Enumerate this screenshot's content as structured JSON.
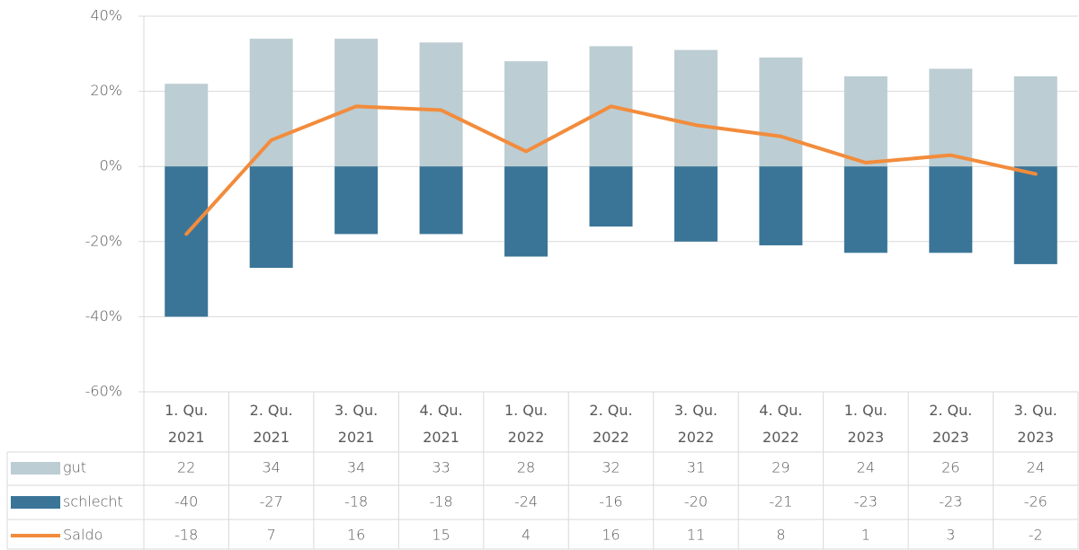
{
  "chart_data": {
    "type": "bar_line_table",
    "categories": [
      "1. Qu. 2021",
      "2. Qu. 2021",
      "3. Qu. 2021",
      "4. Qu. 2021",
      "1. Qu. 2022",
      "2. Qu. 2022",
      "3. Qu. 2022",
      "4. Qu. 2022",
      "1. Qu. 2023",
      "2. Qu. 2023",
      "3. Qu. 2023"
    ],
    "series": [
      {
        "name": "gut",
        "type": "bar",
        "color": "#bccdd3",
        "values": [
          22,
          34,
          34,
          33,
          28,
          32,
          31,
          29,
          24,
          26,
          24
        ]
      },
      {
        "name": "schlecht",
        "type": "bar",
        "color": "#3a7598",
        "values": [
          -40,
          -27,
          -18,
          -18,
          -24,
          -16,
          -20,
          -21,
          -23,
          -23,
          -26
        ]
      },
      {
        "name": "Saldo",
        "type": "line",
        "color": "#f28c3c",
        "values": [
          -18,
          7,
          16,
          15,
          4,
          16,
          11,
          8,
          1,
          3,
          -2
        ]
      }
    ],
    "ylim": [
      -60,
      40
    ],
    "yticks": [
      {
        "value": -60,
        "label": "-60%"
      },
      {
        "value": -40,
        "label": "-40%"
      },
      {
        "value": -20,
        "label": "-20%"
      },
      {
        "value": 0,
        "label": "0%"
      },
      {
        "value": 20,
        "label": "20%"
      },
      {
        "value": 40,
        "label": "40%"
      }
    ],
    "grid": true
  }
}
